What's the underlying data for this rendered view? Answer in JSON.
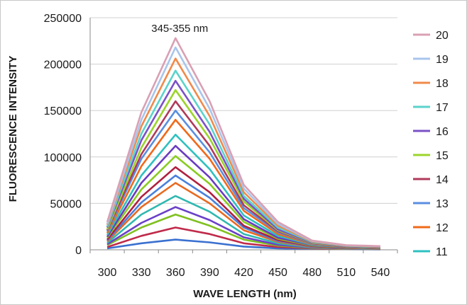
{
  "chart_data": {
    "type": "line",
    "title": "",
    "xlabel": "WAVE LENGTH (nm)",
    "ylabel": "FLUORESCENCE INTENSITY",
    "x": [
      300,
      330,
      360,
      390,
      420,
      450,
      480,
      510,
      540
    ],
    "xticks": [
      "300",
      "330",
      "360",
      "390",
      "420",
      "450",
      "480",
      "510",
      "540"
    ],
    "ylim": [
      0,
      250000
    ],
    "yticks": [
      "0",
      "50000",
      "100000",
      "150000",
      "200000",
      "250000"
    ],
    "annotation": {
      "text": "345-355 nm",
      "x": 360
    },
    "grid": "horizontal",
    "legend_position": "right",
    "series": [
      {
        "name": "20",
        "color": "#d9a0b4",
        "values": [
          30000,
          148000,
          228000,
          160000,
          70000,
          30000,
          10000,
          5000,
          4000
        ]
      },
      {
        "name": "19",
        "color": "#a9c5ec",
        "values": [
          28000,
          140000,
          218000,
          152000,
          66000,
          28000,
          9500,
          4800,
          3800
        ]
      },
      {
        "name": "18",
        "color": "#f08a4b",
        "values": [
          27000,
          133000,
          206000,
          144000,
          62000,
          26000,
          9000,
          4500,
          3600
        ]
      },
      {
        "name": "17",
        "color": "#5bd3cb",
        "values": [
          25000,
          125000,
          193000,
          135000,
          58000,
          24000,
          8500,
          4200,
          3400
        ]
      },
      {
        "name": "16",
        "color": "#7b52c8",
        "values": [
          24000,
          118000,
          182000,
          127000,
          55000,
          22000,
          8000,
          4000,
          3200
        ]
      },
      {
        "name": "15",
        "color": "#9bd42a",
        "values": [
          22000,
          110000,
          172000,
          120000,
          52000,
          21000,
          7500,
          3800,
          3000
        ]
      },
      {
        "name": "14",
        "color": "#b03a5a",
        "values": [
          21000,
          103000,
          160000,
          112000,
          48000,
          20000,
          7000,
          3600,
          2800
        ]
      },
      {
        "name": "13",
        "color": "#5a8ee0",
        "values": [
          20000,
          98000,
          150000,
          105000,
          45000,
          19000,
          6500,
          3400,
          2600
        ]
      },
      {
        "name": "12",
        "color": "#f06a1a",
        "values": [
          18000,
          90000,
          140000,
          98000,
          42000,
          17000,
          6000,
          3200,
          2400
        ]
      },
      {
        "name": "11",
        "color": "#2ec0c0",
        "values": [
          16000,
          80000,
          124000,
          87000,
          37000,
          15000,
          5500,
          3000,
          2200
        ]
      },
      {
        "name": "",
        "color": "#6a3cc0",
        "values": [
          14000,
          72000,
          112000,
          78000,
          33000,
          13000,
          5000,
          2800,
          2000
        ]
      },
      {
        "name": "",
        "color": "#8acc20",
        "values": [
          13000,
          65000,
          101000,
          71000,
          30000,
          12000,
          4500,
          2600,
          1800
        ]
      },
      {
        "name": "",
        "color": "#b02040",
        "values": [
          11000,
          57000,
          89000,
          62000,
          26000,
          10500,
          4000,
          2400,
          1600
        ]
      },
      {
        "name": "",
        "color": "#4a80dc",
        "values": [
          10000,
          51000,
          80000,
          56000,
          24000,
          9500,
          3600,
          2200,
          1500
        ]
      },
      {
        "name": "",
        "color": "#e86a20",
        "values": [
          9000,
          46000,
          72000,
          50000,
          21000,
          8500,
          3200,
          2000,
          1400
        ]
      },
      {
        "name": "",
        "color": "#30b8b0",
        "values": [
          7500,
          38000,
          58000,
          41000,
          17000,
          7000,
          2800,
          1800,
          1200
        ]
      },
      {
        "name": "",
        "color": "#6a40c8",
        "values": [
          6000,
          29000,
          46000,
          32000,
          13500,
          5500,
          2400,
          1600,
          1000
        ]
      },
      {
        "name": "",
        "color": "#80c020",
        "values": [
          5000,
          24000,
          38000,
          26000,
          11000,
          4500,
          2000,
          1400,
          900
        ]
      },
      {
        "name": "",
        "color": "#c02a4a",
        "values": [
          3000,
          15000,
          24000,
          17000,
          7000,
          3000,
          1500,
          1000,
          700
        ]
      },
      {
        "name": "",
        "color": "#3a70d0",
        "values": [
          1500,
          7000,
          11000,
          8000,
          3500,
          1500,
          800,
          600,
          400
        ]
      }
    ]
  }
}
